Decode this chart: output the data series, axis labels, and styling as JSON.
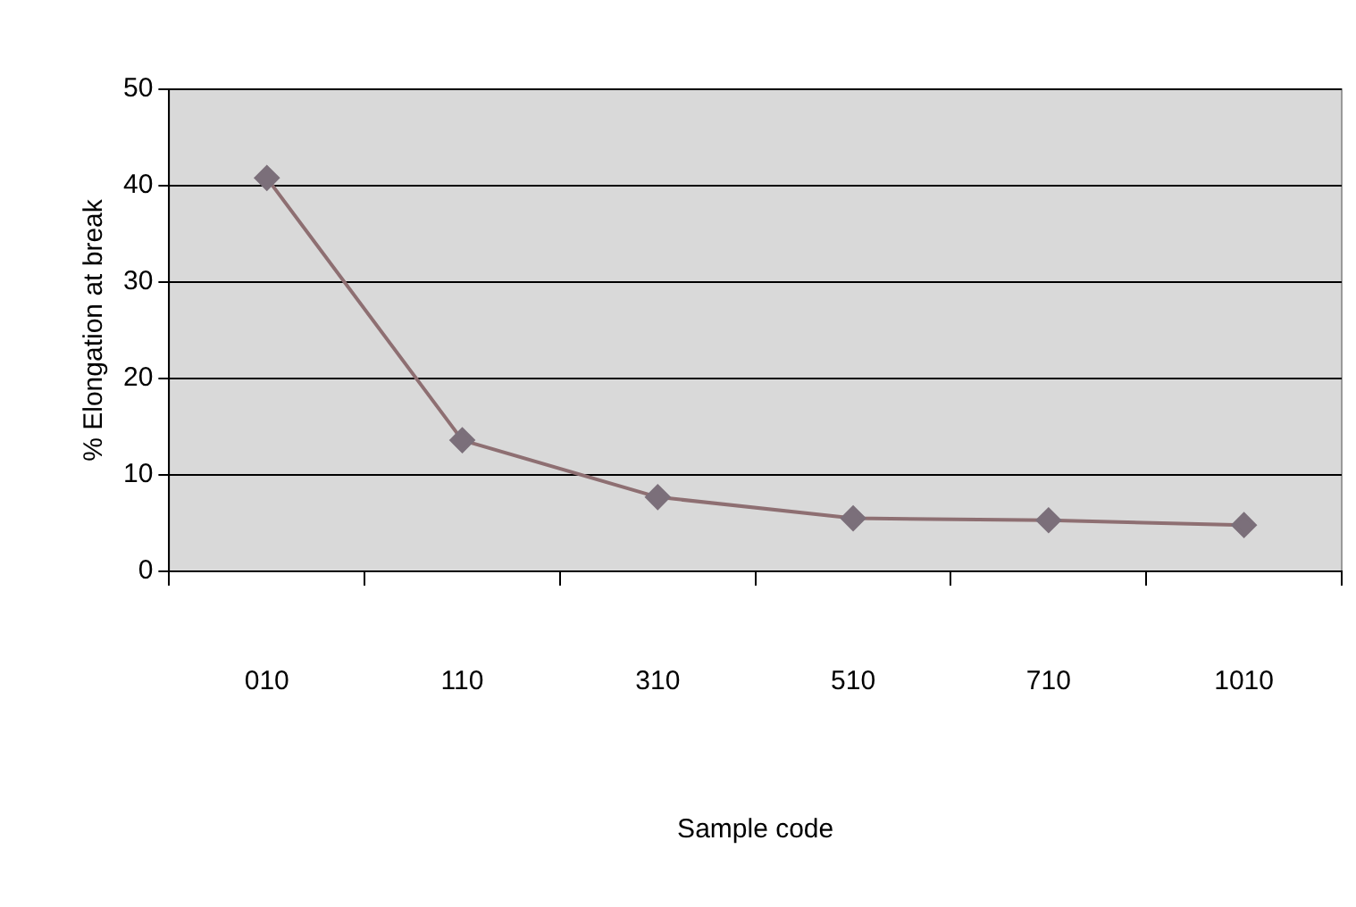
{
  "chart_data": {
    "type": "line",
    "xlabel": "Sample code",
    "ylabel": "% Elongation at break",
    "categories": [
      "010",
      "110",
      "310",
      "510",
      "710",
      "1010"
    ],
    "series": [
      {
        "color": "#8e6f72",
        "values": [
          40.8,
          13.6,
          7.7,
          5.5,
          5.3,
          4.8
        ]
      }
    ],
    "ylim": [
      0,
      50
    ],
    "yticks": [
      0,
      10,
      20,
      30,
      40,
      50
    ],
    "grid": "y",
    "legend": false,
    "marker": "diamond",
    "line_style": "solid"
  }
}
